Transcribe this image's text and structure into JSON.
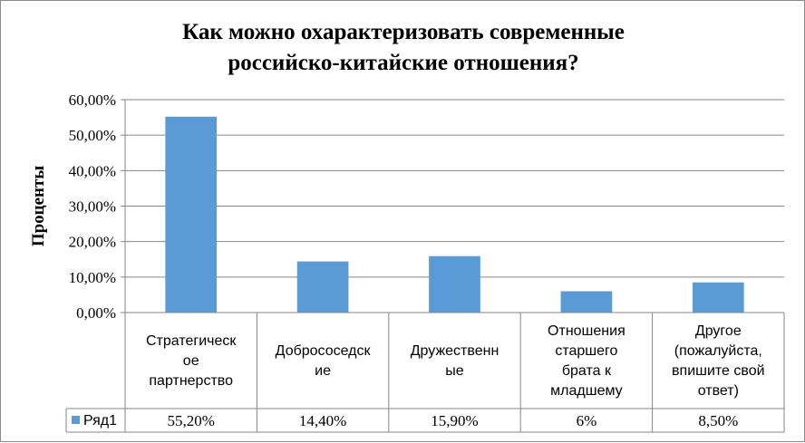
{
  "chart_data": {
    "type": "bar",
    "title": "Как можно охарактеризовать современные российско-китайские отношения?",
    "title_lines": [
      "Как можно охарактеризовать современные",
      "российско-китайские отношения?"
    ],
    "ylabel": "Проценты",
    "xlabel": "",
    "ylim": [
      0,
      0.6
    ],
    "y_ticks": [
      {
        "value": 0.0,
        "label": "0,00%"
      },
      {
        "value": 0.1,
        "label": "10,00%"
      },
      {
        "value": 0.2,
        "label": "20,00%"
      },
      {
        "value": 0.3,
        "label": "30,00%"
      },
      {
        "value": 0.4,
        "label": "40,00%"
      },
      {
        "value": 0.5,
        "label": "50,00%"
      },
      {
        "value": 0.6,
        "label": "60,00%"
      }
    ],
    "grid": true,
    "legend_position": "data-table-left",
    "categories": [
      [
        "Стратегическ",
        "ое",
        "партнерство"
      ],
      [
        "Добрососедск",
        "ие"
      ],
      [
        "Дружественн",
        "ые"
      ],
      [
        "Отношения",
        "старшего",
        "брата к",
        "младшему"
      ],
      [
        "Другое",
        "(пожалуйста,",
        "впишите свой",
        "ответ)"
      ]
    ],
    "series": [
      {
        "name": "Ряд1",
        "color": "#5b9bd5",
        "values": [
          0.552,
          0.144,
          0.159,
          0.06,
          0.085
        ],
        "labels": [
          "55,20%",
          "14,40%",
          "15,90%",
          "6%",
          "8,50%"
        ]
      }
    ]
  }
}
